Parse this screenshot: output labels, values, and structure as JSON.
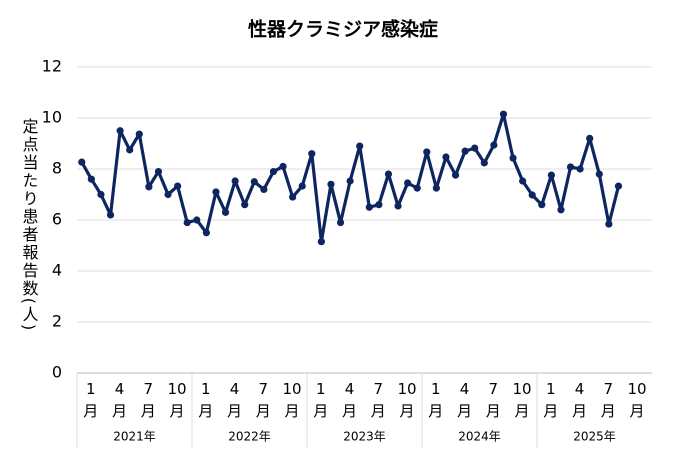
{
  "chart_data": {
    "type": "line",
    "title": "性器クラミジア感染症",
    "y_label": "定点当たり患者報告数(人)",
    "categories": [
      "1月",
      null,
      null,
      "4月",
      null,
      null,
      "7月",
      null,
      null,
      "10月",
      null,
      null,
      "1月",
      null,
      null,
      "4月",
      null,
      null,
      "7月",
      null,
      null,
      "10月",
      null,
      null,
      "1月",
      null,
      null,
      "4月",
      null,
      null,
      "7月",
      null,
      null,
      "10月",
      null,
      null,
      "1月",
      null,
      null,
      "4月",
      null,
      null,
      "7月",
      null,
      null,
      "10月",
      null,
      null,
      "1月",
      null,
      null,
      "4月",
      null,
      null,
      "7月",
      null,
      null,
      "10月"
    ],
    "year_labels": [
      "2021年",
      "2022年",
      "2023年",
      "2024年",
      "2025年"
    ],
    "series": [
      {
        "color": "#0d2660",
        "values": [
          8.27,
          7.6,
          7.0,
          6.2,
          9.5,
          8.75,
          9.37,
          7.3,
          7.9,
          7.0,
          7.33,
          5.9,
          6.0,
          5.5,
          7.1,
          6.3,
          7.53,
          6.6,
          7.5,
          7.2,
          7.9,
          8.1,
          6.9,
          7.33,
          8.6,
          5.15,
          7.4,
          5.9,
          7.53,
          8.9,
          6.5,
          6.6,
          7.8,
          6.55,
          7.45,
          7.25,
          8.67,
          7.25,
          8.47,
          7.76,
          8.7,
          8.82,
          8.24,
          8.94,
          10.15,
          8.43,
          7.53,
          6.98,
          6.6,
          7.76,
          6.4,
          8.08,
          8.0,
          9.2,
          7.8,
          5.84,
          7.33,
          null
        ]
      }
    ],
    "ylim": [
      0,
      12
    ],
    "yticks": [
      0,
      2,
      4,
      6,
      8,
      10,
      12
    ],
    "grid": true
  }
}
